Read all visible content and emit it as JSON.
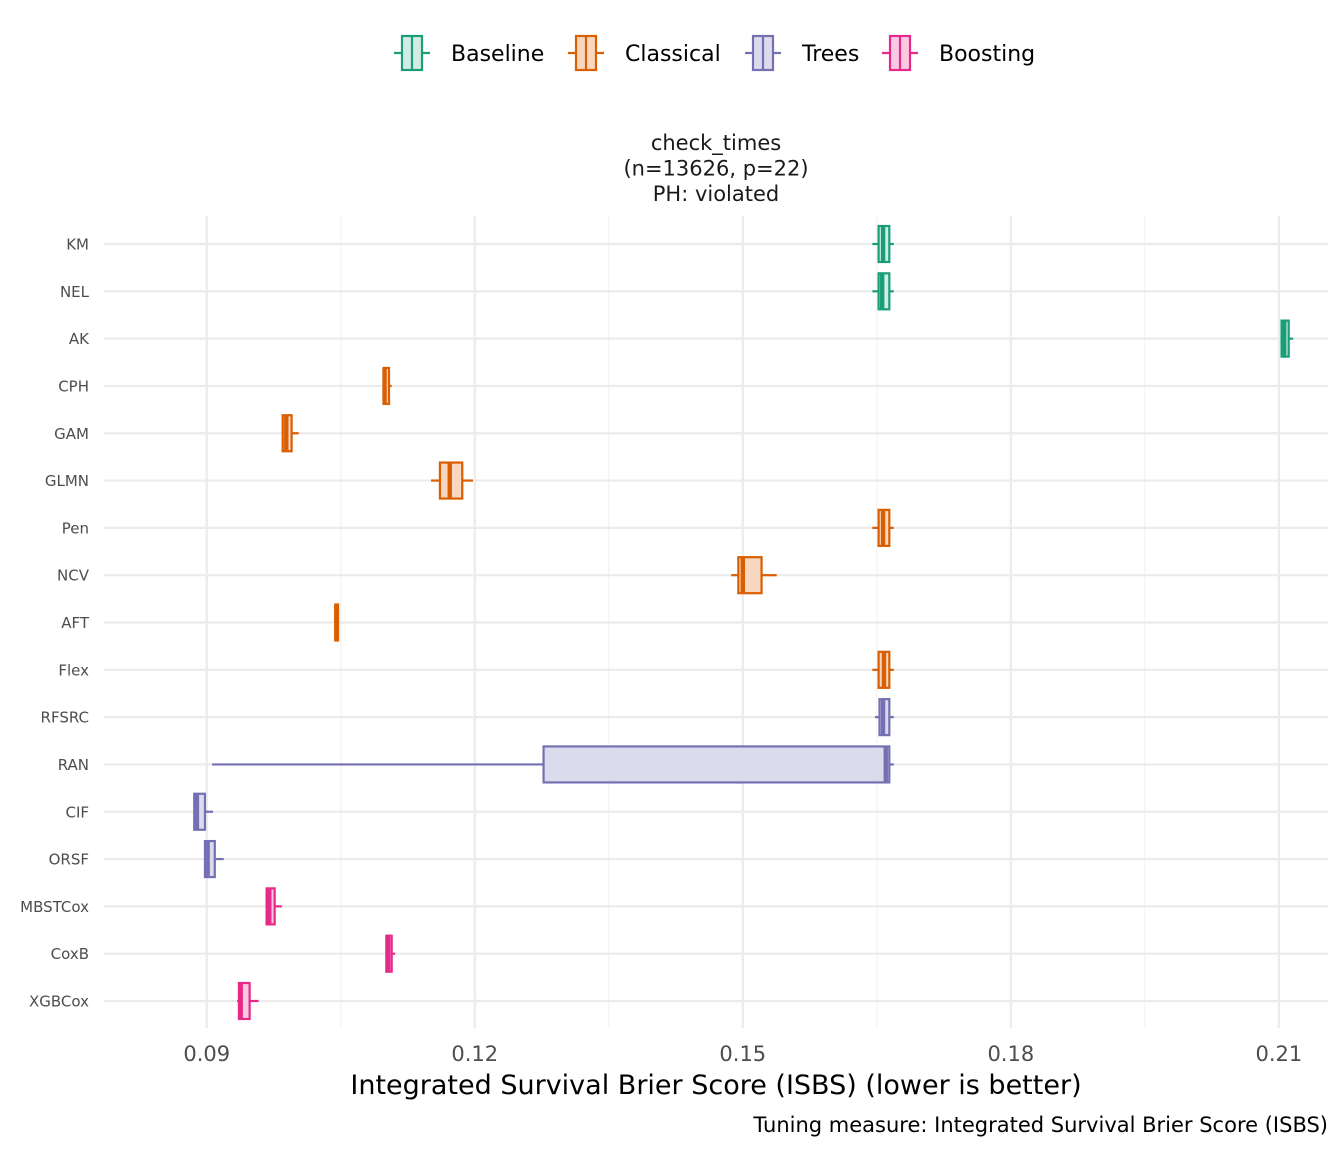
{
  "chart_data": {
    "type": "boxplot",
    "orientation": "horizontal",
    "facet_title": [
      "check_times",
      "(n=13626, p=22)",
      "PH: violated"
    ],
    "xlabel": "Integrated Survival Brier Score (ISBS) (lower is better)",
    "caption": "Tuning measure: Integrated Survival Brier Score (ISBS)",
    "xlim": [
      0.0785,
      0.2155
    ],
    "x_ticks": [
      0.09,
      0.12,
      0.15,
      0.18,
      0.21
    ],
    "x_tick_labels": [
      "0.09",
      "0.12",
      "0.15",
      "0.18",
      "0.21"
    ],
    "grid": true,
    "legend_position": "top",
    "legend": [
      {
        "group": "Baseline",
        "label": "Baseline",
        "color": "#1b9e77",
        "fill": "#d2ece4"
      },
      {
        "group": "Classical",
        "label": "Classical",
        "color": "#d95f02",
        "fill": "#f7d7c0"
      },
      {
        "group": "Trees",
        "label": "Trees",
        "color": "#7570b3",
        "fill": "#dcdbec"
      },
      {
        "group": "Boosting",
        "label": "Boosting",
        "color": "#e7298a",
        "fill": "#f9cae2"
      }
    ],
    "series": [
      {
        "name": "KM",
        "group": "Baseline",
        "min": 0.1645,
        "q1": 0.1652,
        "median": 0.1657,
        "q3": 0.1664,
        "max": 0.1669
      },
      {
        "name": "NEL",
        "group": "Baseline",
        "min": 0.1645,
        "q1": 0.1652,
        "median": 0.1656,
        "q3": 0.1664,
        "max": 0.1669
      },
      {
        "name": "AK",
        "group": "Baseline",
        "min": 0.2102,
        "q1": 0.2103,
        "median": 0.2106,
        "q3": 0.2111,
        "max": 0.2116
      },
      {
        "name": "CPH",
        "group": "Classical",
        "min": 0.1097,
        "q1": 0.1098,
        "median": 0.1099,
        "q3": 0.1104,
        "max": 0.1107
      },
      {
        "name": "GAM",
        "group": "Classical",
        "min": 0.0985,
        "q1": 0.0985,
        "median": 0.0989,
        "q3": 0.0995,
        "max": 0.1003
      },
      {
        "name": "GLMN",
        "group": "Classical",
        "min": 0.1151,
        "q1": 0.1161,
        "median": 0.1172,
        "q3": 0.1186,
        "max": 0.1198
      },
      {
        "name": "Pen",
        "group": "Classical",
        "min": 0.1645,
        "q1": 0.1652,
        "median": 0.1657,
        "q3": 0.1664,
        "max": 0.1669
      },
      {
        "name": "NCV",
        "group": "Classical",
        "min": 0.1487,
        "q1": 0.1495,
        "median": 0.15,
        "q3": 0.1521,
        "max": 0.1538
      },
      {
        "name": "AFT",
        "group": "Classical",
        "min": 0.1043,
        "q1": 0.1044,
        "median": 0.1045,
        "q3": 0.1047,
        "max": 0.1048
      },
      {
        "name": "Flex",
        "group": "Classical",
        "min": 0.1645,
        "q1": 0.1652,
        "median": 0.1658,
        "q3": 0.1664,
        "max": 0.1669
      },
      {
        "name": "RFSRC",
        "group": "Trees",
        "min": 0.1648,
        "q1": 0.1653,
        "median": 0.1657,
        "q3": 0.1664,
        "max": 0.1669
      },
      {
        "name": "RAN",
        "group": "Trees",
        "min": 0.0906,
        "q1": 0.1277,
        "median": 0.166,
        "q3": 0.1664,
        "max": 0.1669
      },
      {
        "name": "CIF",
        "group": "Trees",
        "min": 0.0885,
        "q1": 0.0886,
        "median": 0.0889,
        "q3": 0.0898,
        "max": 0.0907
      },
      {
        "name": "ORSF",
        "group": "Trees",
        "min": 0.0897,
        "q1": 0.0898,
        "median": 0.0901,
        "q3": 0.0909,
        "max": 0.0919
      },
      {
        "name": "MBSTCox",
        "group": "Boosting",
        "min": 0.0967,
        "q1": 0.0967,
        "median": 0.097,
        "q3": 0.0976,
        "max": 0.0984
      },
      {
        "name": "CoxB",
        "group": "Boosting",
        "min": 0.1101,
        "q1": 0.1101,
        "median": 0.1103,
        "q3": 0.1107,
        "max": 0.1111
      },
      {
        "name": "XGBCox",
        "group": "Boosting",
        "min": 0.0934,
        "q1": 0.0936,
        "median": 0.0938,
        "q3": 0.0948,
        "max": 0.0958
      }
    ]
  }
}
